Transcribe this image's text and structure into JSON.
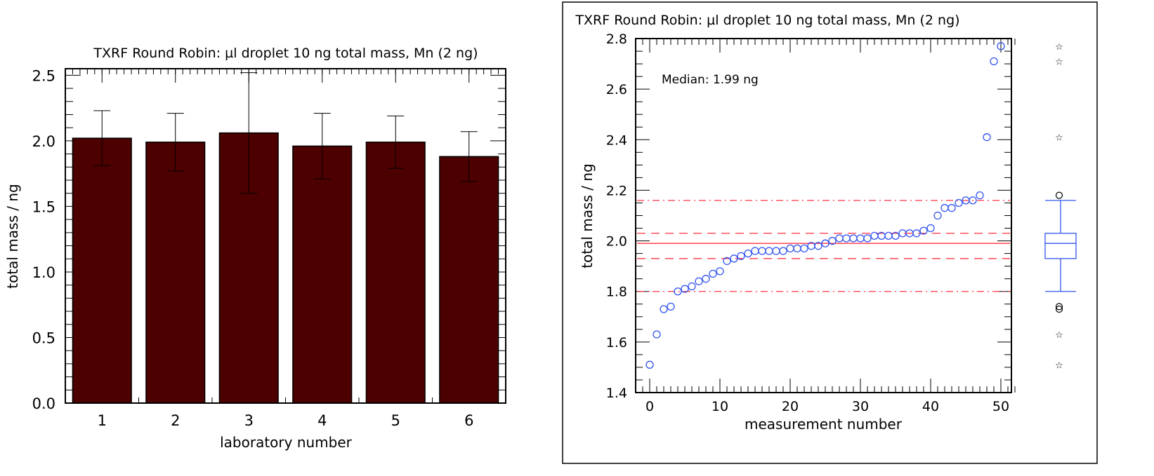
{
  "chart_data": [
    {
      "type": "bar",
      "title": "TXRF Round Robin: µl droplet 10 ng total mass, Mn (2 ng)",
      "xlabel": "laboratory number",
      "ylabel": "total mass / ng",
      "categories": [
        "1",
        "2",
        "3",
        "4",
        "5",
        "6"
      ],
      "values": [
        2.02,
        1.99,
        2.06,
        1.96,
        1.99,
        1.88
      ],
      "error_upper": [
        2.23,
        2.21,
        2.52,
        2.21,
        2.19,
        2.07
      ],
      "error_lower": [
        1.81,
        1.77,
        1.6,
        1.71,
        1.79,
        1.69
      ],
      "ylim": [
        0,
        2.55
      ],
      "yticks": [
        "0.0",
        "0.5",
        "1.0",
        "1.5",
        "2.0",
        "2.5"
      ],
      "bar_color": "#4d0000",
      "grid": false
    },
    {
      "type": "scatter",
      "title": "TXRF Round Robin: µl droplet 10 ng total mass, Mn (2 ng)",
      "xlabel": "measurement number",
      "ylabel": "total mass / ng",
      "annotation": "Median: 1.99 ng",
      "xlim": [
        -3,
        53
      ],
      "ylim": [
        1.4,
        2.8
      ],
      "xticks": [
        "0",
        "10",
        "20",
        "30",
        "40",
        "50"
      ],
      "yticks": [
        "1.4",
        "1.6",
        "1.8",
        "2.0",
        "2.2",
        "2.4",
        "2.6",
        "2.8"
      ],
      "point_color": "#3355ee",
      "line_color": "#ff3344",
      "values": [
        1.51,
        1.63,
        1.73,
        1.74,
        1.8,
        1.81,
        1.82,
        1.84,
        1.85,
        1.87,
        1.88,
        1.92,
        1.93,
        1.94,
        1.95,
        1.96,
        1.96,
        1.96,
        1.96,
        1.96,
        1.97,
        1.97,
        1.97,
        1.98,
        1.98,
        1.99,
        2.0,
        2.01,
        2.01,
        2.01,
        2.01,
        2.01,
        2.02,
        2.02,
        2.02,
        2.02,
        2.03,
        2.03,
        2.03,
        2.04,
        2.05,
        2.1,
        2.13,
        2.13,
        2.15,
        2.16,
        2.16,
        2.18,
        2.41,
        2.71,
        2.77
      ],
      "reference_lines": [
        {
          "value": 1.99,
          "style": "solid"
        },
        {
          "value": 1.93,
          "style": "dashed"
        },
        {
          "value": 2.03,
          "style": "dashed"
        },
        {
          "value": 1.8,
          "style": "dash-dot"
        },
        {
          "value": 2.16,
          "style": "dash-dot"
        }
      ],
      "boxplot": {
        "q1": 1.93,
        "median": 1.99,
        "q3": 2.03,
        "whisker_low": 1.8,
        "whisker_high": 2.16,
        "outliers_circle": [
          2.18,
          1.74,
          1.73
        ],
        "outliers_star": [
          2.77,
          2.71,
          2.41,
          1.63,
          1.51
        ]
      }
    }
  ]
}
